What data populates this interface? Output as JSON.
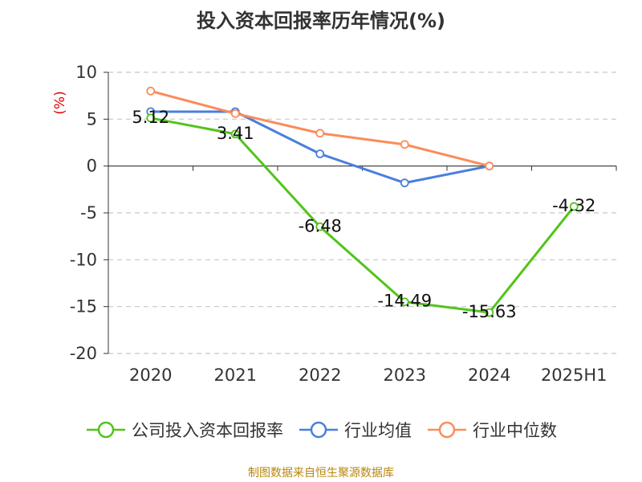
{
  "title": "投入资本回报率历年情况(%)",
  "source": "制图数据来自恒生聚源数据库",
  "chart_data": {
    "type": "line",
    "categories": [
      "2020",
      "2021",
      "2022",
      "2023",
      "2024",
      "2025H1"
    ],
    "ylabel": "(%)",
    "ylim": [
      -20,
      10
    ],
    "yticks": [
      10,
      5,
      0,
      -5,
      -10,
      -15,
      -20
    ],
    "grid": true,
    "legend_position": "bottom",
    "series": [
      {
        "name": "公司投入资本回报率",
        "color": "#52c41a",
        "values": [
          5.12,
          3.41,
          -6.48,
          -14.49,
          -15.63,
          -4.32
        ],
        "labels": [
          "5.12",
          "3.41",
          "-6.48",
          "-14.49",
          "-15.63",
          "-4.32"
        ]
      },
      {
        "name": "行业均值",
        "color": "#4a7fdc",
        "values": [
          5.8,
          5.8,
          1.3,
          -1.8,
          0.0,
          null
        ]
      },
      {
        "name": "行业中位数",
        "color": "#fa8c5a",
        "values": [
          8.0,
          5.6,
          3.5,
          2.3,
          0.0,
          null
        ]
      }
    ]
  }
}
